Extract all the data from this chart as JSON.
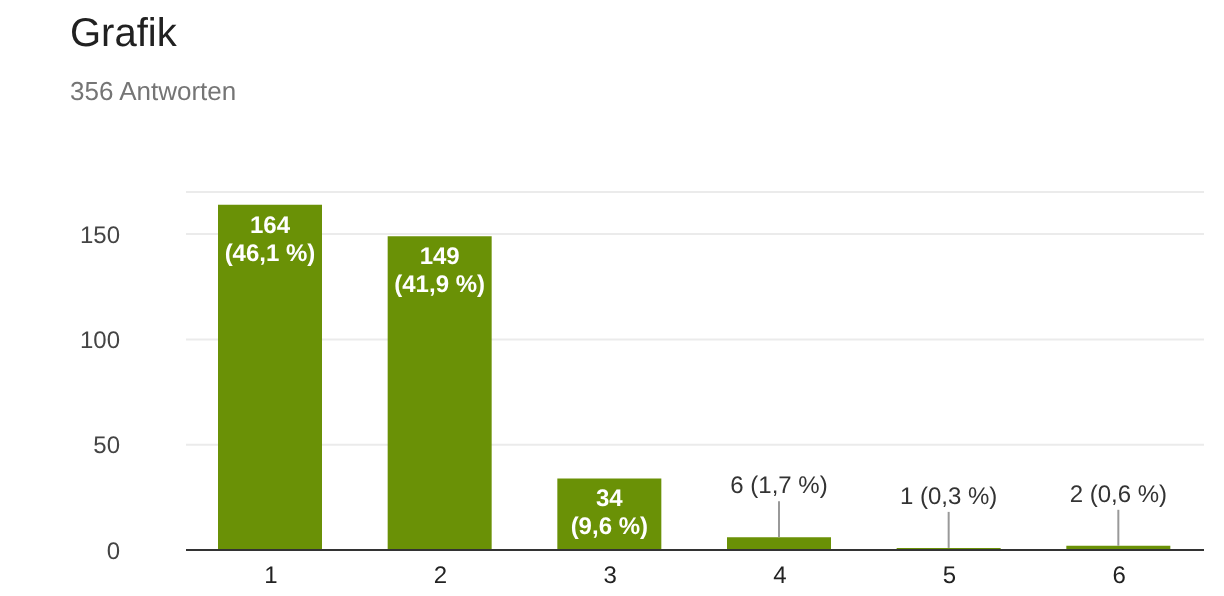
{
  "chart_data": {
    "type": "bar",
    "title": "Grafik",
    "subtitle": "356 Antworten",
    "categories": [
      "1",
      "2",
      "3",
      "4",
      "5",
      "6"
    ],
    "values": [
      164,
      149,
      34,
      6,
      1,
      2
    ],
    "value_labels": [
      "164 (46,1 %)",
      "149 (41,9 %)",
      "34 (9,6 %)",
      "6 (1,7 %)",
      "1 (0,3 %)",
      "2 (0,6 %)"
    ],
    "color": "#6a9106",
    "ylim": [
      0,
      170
    ],
    "yticks": [
      0,
      50,
      100,
      150
    ],
    "grid": "y",
    "legend": false
  }
}
